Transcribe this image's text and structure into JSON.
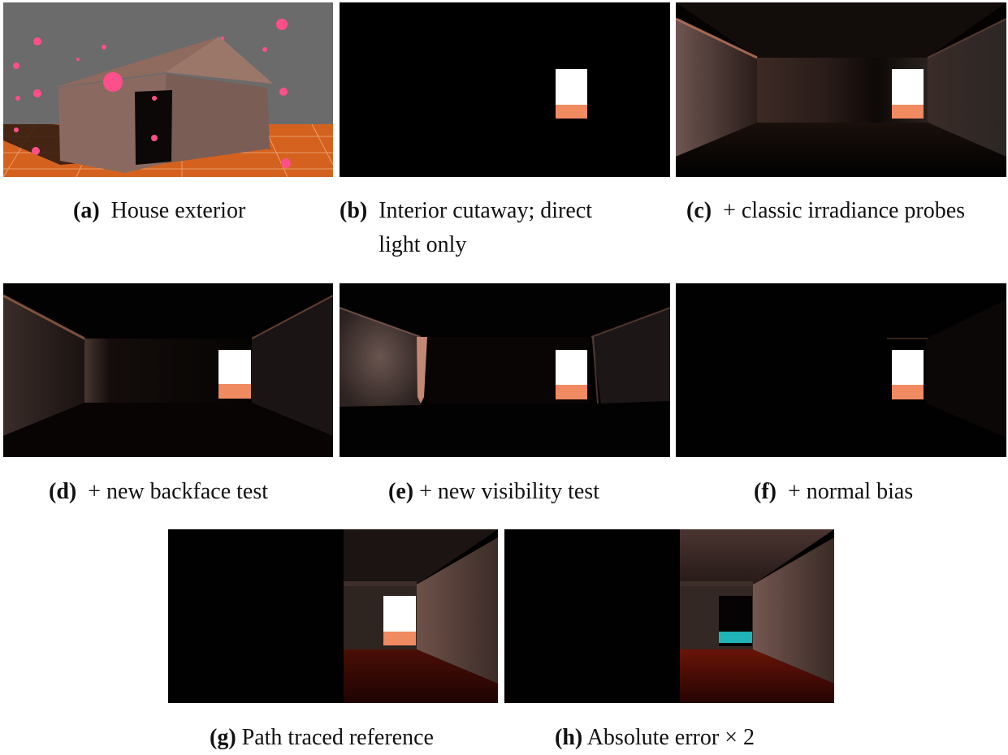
{
  "figure": {
    "panels": [
      {
        "id": "a",
        "label": "(a)",
        "caption": "House exterior"
      },
      {
        "id": "b",
        "label": "(b)",
        "caption": "Interior cutaway; direct light only"
      },
      {
        "id": "c",
        "label": "(c)",
        "caption": "+ classic irradiance probes"
      },
      {
        "id": "d",
        "label": "(d)",
        "caption": "+ new backface test"
      },
      {
        "id": "e",
        "label": "(e)",
        "caption": "+ new visibility test"
      },
      {
        "id": "f",
        "label": "(f)",
        "caption": "+ normal bias"
      },
      {
        "id": "g",
        "label": "(g)",
        "caption": "Path traced reference"
      },
      {
        "id": "h",
        "label": "(h)",
        "caption": "Absolute error × 2"
      }
    ],
    "colors": {
      "ground_orange": "#d4621e",
      "probe_pink": "#ff4f8b",
      "sky_gray": "#6b6b6b",
      "wall_warm": "#8a6a60",
      "window_white": "#ffffff",
      "window_floor": "#f08a60",
      "error_cyan": "#1fb3b8",
      "error_red": "#7a1206"
    }
  }
}
